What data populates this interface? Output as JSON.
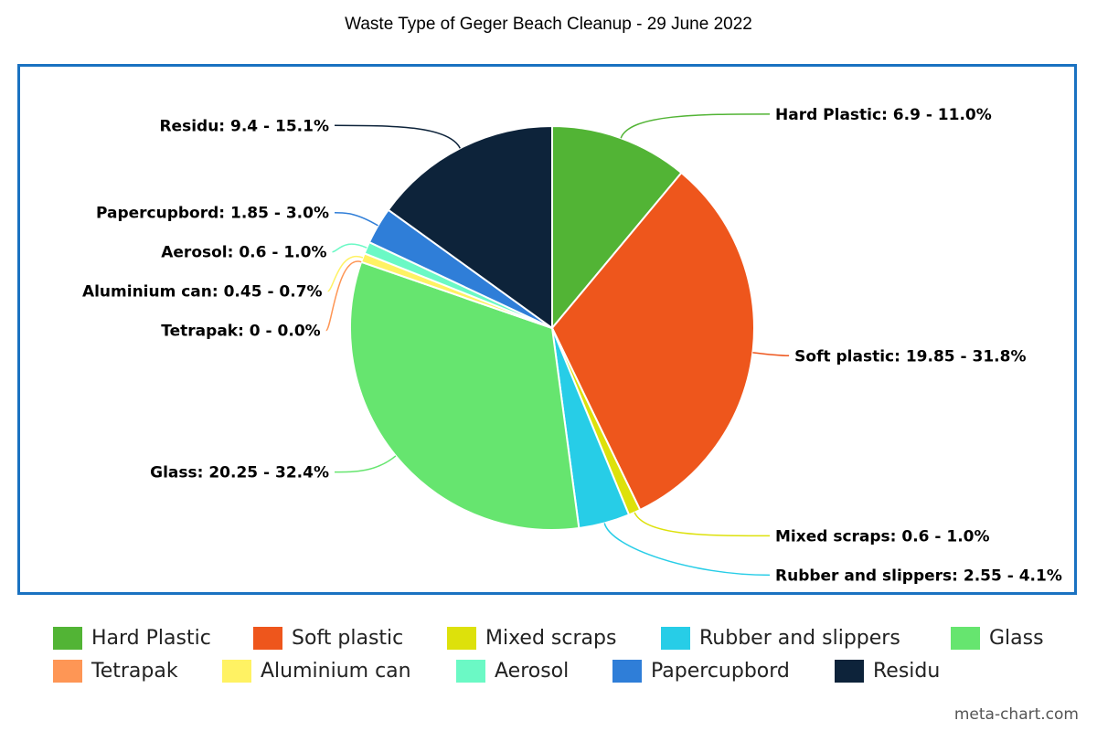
{
  "chart_data": {
    "type": "pie",
    "title": "Waste Type of Geger Beach Cleanup - 29 June 2022",
    "slices": [
      {
        "name": "Hard Plastic",
        "value": 6.9,
        "percent": "11.0%",
        "color": "#52b435",
        "label": "Hard Plastic: 6.9 - 11.0%",
        "label_side": "right"
      },
      {
        "name": "Soft plastic",
        "value": 19.85,
        "percent": "31.8%",
        "color": "#ee561c",
        "label": "Soft plastic: 19.85 - 31.8%",
        "label_side": "right"
      },
      {
        "name": "Mixed scraps",
        "value": 0.6,
        "percent": "1.0%",
        "color": "#dde10b",
        "label": "Mixed scraps: 0.6 - 1.0%",
        "label_side": "right"
      },
      {
        "name": "Rubber and slippers",
        "value": 2.55,
        "percent": "4.1%",
        "color": "#27cde7",
        "label": "Rubber and slippers: 2.55 - 4.1%",
        "label_side": "right"
      },
      {
        "name": "Glass",
        "value": 20.25,
        "percent": "32.4%",
        "color": "#66e56f",
        "label": "Glass: 20.25 - 32.4%",
        "label_side": "left"
      },
      {
        "name": "Tetrapak",
        "value": 0,
        "percent": "0.0%",
        "color": "#fe9655",
        "label": "Tetrapak: 0 - 0.0%",
        "label_side": "left"
      },
      {
        "name": "Aluminium can",
        "value": 0.45,
        "percent": "0.7%",
        "color": "#fff263",
        "label": "Aluminium can: 0.45 - 0.7%",
        "label_side": "left"
      },
      {
        "name": "Aerosol",
        "value": 0.6,
        "percent": "1.0%",
        "color": "#6bf9c5",
        "label": "Aerosol: 0.6 - 1.0%",
        "label_side": "left"
      },
      {
        "name": "Papercupbord",
        "value": 1.85,
        "percent": "3.0%",
        "color": "#2f7ed8",
        "label": "Papercupbord: 1.85 - 3.0%",
        "label_side": "left"
      },
      {
        "name": "Residu",
        "value": 9.4,
        "percent": "15.1%",
        "color": "#0d233a",
        "label": "Residu: 9.4 - 15.1%",
        "label_side": "left"
      }
    ],
    "legend": {
      "placement": "bottom",
      "rows": [
        [
          "Hard Plastic",
          "Soft plastic",
          "Mixed scraps",
          "Rubber and slippers",
          "Glass"
        ],
        [
          "Tetrapak",
          "Aluminium can",
          "Aerosol",
          "Papercupbord",
          "Residu"
        ]
      ]
    },
    "frame_color": "#1a72c1"
  },
  "watermark": "meta-chart.com"
}
